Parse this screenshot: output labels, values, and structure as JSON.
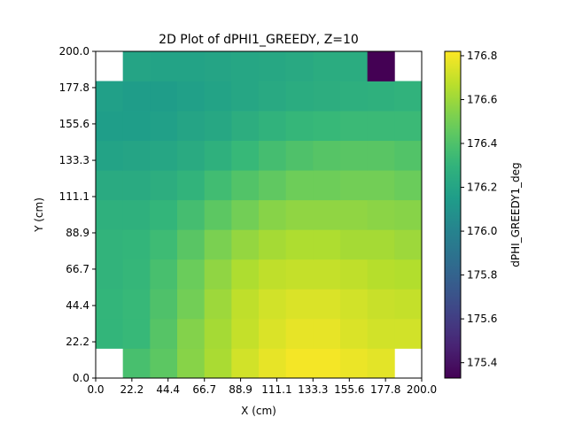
{
  "chart_data": {
    "type": "heatmap",
    "title": "2D Plot of dPHI1_GREEDY, Z=10",
    "xlabel": "X (cm)",
    "ylabel": "Y (cm)",
    "colorbar_label": "dPHI_GREEDY1_deg",
    "colormap": "viridis",
    "xlim": [
      0.0,
      200.0
    ],
    "ylim": [
      0.0,
      200.0
    ],
    "clim": [
      175.33,
      176.82
    ],
    "x_ticks": [
      "0.0",
      "22.2",
      "44.4",
      "66.7",
      "88.9",
      "111.1",
      "133.3",
      "155.6",
      "177.8",
      "200.0"
    ],
    "y_ticks": [
      "0.0",
      "22.2",
      "44.4",
      "66.7",
      "88.9",
      "111.1",
      "133.3",
      "155.6",
      "177.8",
      "200.0"
    ],
    "colorbar_ticks": [
      "175.4",
      "175.6",
      "175.8",
      "176.0",
      "176.2",
      "176.4",
      "176.6",
      "176.8"
    ],
    "x_bin_edges": [
      0,
      16.67,
      33.33,
      50,
      66.67,
      83.33,
      100,
      116.67,
      133.33,
      150,
      166.67,
      183.33,
      200
    ],
    "y_bin_edges": [
      0,
      18.18,
      36.36,
      54.55,
      72.73,
      90.91,
      109.09,
      127.27,
      145.45,
      163.64,
      181.82,
      200
    ],
    "grid": false,
    "z_rows_bottom_to_top": [
      [
        null,
        176.38,
        176.44,
        176.55,
        176.63,
        176.72,
        176.77,
        176.8,
        176.8,
        176.78,
        176.76,
        null
      ],
      [
        176.31,
        176.33,
        176.42,
        176.54,
        176.62,
        176.69,
        176.74,
        176.77,
        176.77,
        176.74,
        176.72,
        176.72
      ],
      [
        176.31,
        176.33,
        176.4,
        176.5,
        176.6,
        176.68,
        176.72,
        176.74,
        176.74,
        176.72,
        176.7,
        176.69
      ],
      [
        176.3,
        176.32,
        176.38,
        176.48,
        176.57,
        176.64,
        176.68,
        176.69,
        176.69,
        176.68,
        176.66,
        176.65
      ],
      [
        176.3,
        176.31,
        176.35,
        176.43,
        176.52,
        176.58,
        176.62,
        176.64,
        176.64,
        176.62,
        176.62,
        176.6
      ],
      [
        176.28,
        176.28,
        176.31,
        176.37,
        176.44,
        176.5,
        176.55,
        176.57,
        176.57,
        176.57,
        176.56,
        176.55
      ],
      [
        176.24,
        176.24,
        176.26,
        176.3,
        176.36,
        176.41,
        176.45,
        176.49,
        176.49,
        176.5,
        176.5,
        176.48
      ],
      [
        176.19,
        176.2,
        176.21,
        176.24,
        176.28,
        176.33,
        176.37,
        176.4,
        176.42,
        176.43,
        176.43,
        176.41
      ],
      [
        176.16,
        176.16,
        176.17,
        176.2,
        176.22,
        176.26,
        176.29,
        176.32,
        176.33,
        176.34,
        176.34,
        176.34
      ],
      [
        176.17,
        176.15,
        176.15,
        176.17,
        176.19,
        176.21,
        176.23,
        176.25,
        176.26,
        176.27,
        176.28,
        176.29
      ],
      [
        null,
        176.2,
        176.19,
        176.19,
        176.2,
        176.21,
        176.22,
        176.23,
        176.25,
        176.25,
        175.33,
        null
      ]
    ]
  }
}
